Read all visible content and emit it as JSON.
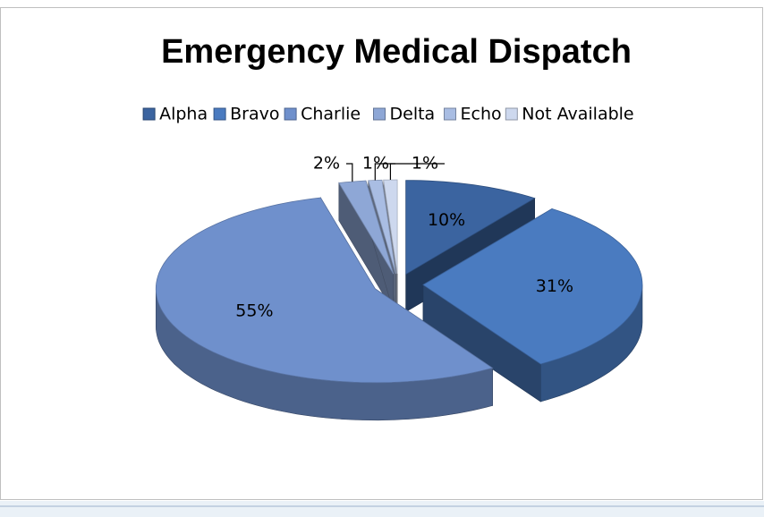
{
  "chart_data": {
    "type": "pie3d",
    "title": "Emergency Medical Dispatch",
    "categories": [
      "Alpha",
      "Bravo",
      "Charlie",
      "Delta",
      "Echo",
      "Not Available"
    ],
    "values": [
      10,
      31,
      55,
      2,
      1,
      1
    ],
    "value_labels": [
      "10%",
      "31%",
      "55%",
      "2%",
      "1%",
      "1%"
    ],
    "colors": [
      "#3b64a0",
      "#4a7bc0",
      "#6f90cc",
      "#8ea7d6",
      "#a9bde3",
      "#cdd8ee"
    ],
    "legend": "top"
  }
}
